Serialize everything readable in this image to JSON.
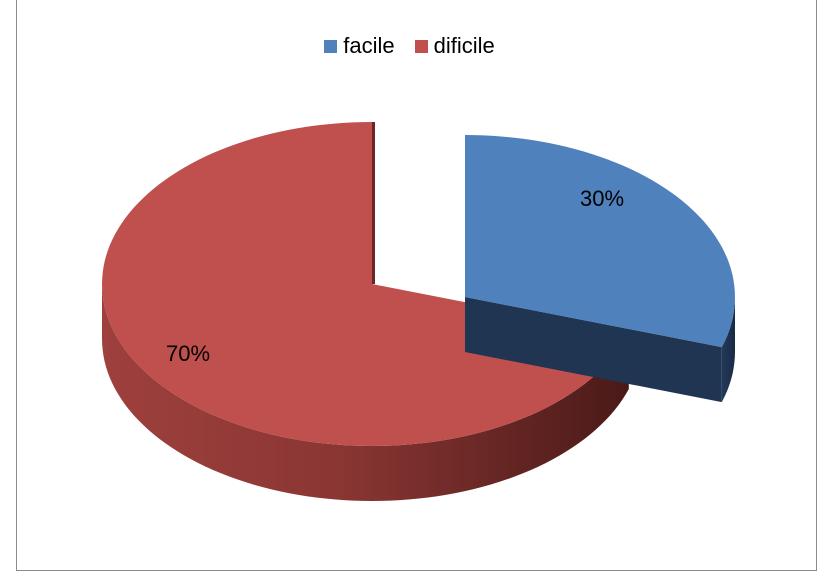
{
  "chart_data": {
    "type": "pie",
    "style": "3d-exploded",
    "categories": [
      "facile",
      "dificile"
    ],
    "values": [
      30,
      70
    ],
    "data_labels": [
      "30%",
      "70%"
    ],
    "colors": [
      "#4F81BD",
      "#C0504D"
    ],
    "side_colors": [
      "#1F3552",
      "#5A1C1A"
    ],
    "legend_position": "top"
  }
}
